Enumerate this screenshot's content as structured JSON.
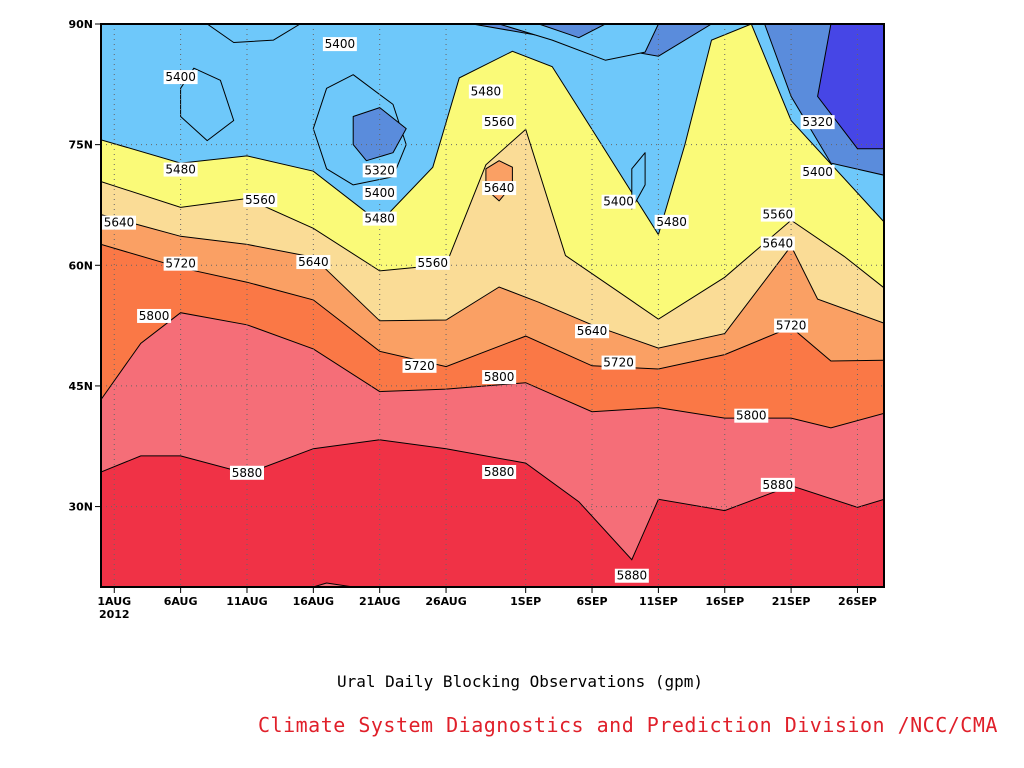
{
  "chart_data": {
    "type": "heatmap",
    "title": "Ural Daily Blocking Observations (gpm)",
    "credit": "Climate System Diagnostics and Prediction Division /NCC/CMA",
    "xlabel": "",
    "ylabel": "",
    "x_range": [
      "2012-07-31",
      "2012-09-28"
    ],
    "y_range": [
      20,
      90
    ],
    "x_ticks": [
      {
        "date": "2012-08-01",
        "label": "1AUG",
        "sublabel": "2012"
      },
      {
        "date": "2012-08-06",
        "label": "6AUG"
      },
      {
        "date": "2012-08-11",
        "label": "11AUG"
      },
      {
        "date": "2012-08-16",
        "label": "16AUG"
      },
      {
        "date": "2012-08-21",
        "label": "21AUG"
      },
      {
        "date": "2012-08-26",
        "label": "26AUG"
      },
      {
        "date": "2012-09-01",
        "label": "1SEP"
      },
      {
        "date": "2012-09-06",
        "label": "6SEP"
      },
      {
        "date": "2012-09-11",
        "label": "11SEP"
      },
      {
        "date": "2012-09-16",
        "label": "16SEP"
      },
      {
        "date": "2012-09-21",
        "label": "21SEP"
      },
      {
        "date": "2012-09-26",
        "label": "26SEP"
      }
    ],
    "y_ticks": [
      {
        "value": 30,
        "label": "30N"
      },
      {
        "value": 45,
        "label": "45N"
      },
      {
        "value": 60,
        "label": "60N"
      },
      {
        "value": 75,
        "label": "75N"
      },
      {
        "value": 90,
        "label": "90N"
      }
    ],
    "grid": true,
    "contour_levels": [
      5320,
      5400,
      5480,
      5560,
      5640,
      5720,
      5800,
      5880
    ],
    "fill_colors": [
      "#4646e6",
      "#5a8cdc",
      "#6ec8fa",
      "#fafa78",
      "#fadc96",
      "#faa064",
      "#fa7846",
      "#f56e78",
      "#f03246"
    ],
    "boundaries": [
      {
        "level": 5880,
        "points": [
          [
            "2012-07-31",
            34.3
          ],
          [
            "2012-08-03",
            36.3
          ],
          [
            "2012-08-06",
            36.3
          ],
          [
            "2012-08-11",
            34.1
          ],
          [
            "2012-08-16",
            37.2
          ],
          [
            "2012-08-21",
            38.3
          ],
          [
            "2012-08-26",
            37.2
          ],
          [
            "2012-09-01",
            35.4
          ],
          [
            "2012-09-05",
            30.6
          ],
          [
            "2012-09-09",
            23.4
          ],
          [
            "2012-09-11",
            30.9
          ],
          [
            "2012-09-16",
            29.5
          ],
          [
            "2012-09-21",
            32.6
          ],
          [
            "2012-09-26",
            29.9
          ],
          [
            "2012-09-28",
            30.9
          ]
        ]
      },
      {
        "level": 5800,
        "points": [
          [
            "2012-07-31",
            43.3
          ],
          [
            "2012-08-03",
            50.3
          ],
          [
            "2012-08-06",
            54.1
          ],
          [
            "2012-08-11",
            52.6
          ],
          [
            "2012-08-16",
            49.6
          ],
          [
            "2012-08-21",
            44.3
          ],
          [
            "2012-08-26",
            44.6
          ],
          [
            "2012-09-01",
            45.4
          ],
          [
            "2012-09-06",
            41.8
          ],
          [
            "2012-09-11",
            42.3
          ],
          [
            "2012-09-16",
            41.0
          ],
          [
            "2012-09-21",
            41.0
          ],
          [
            "2012-09-24",
            39.8
          ],
          [
            "2012-09-28",
            41.6
          ]
        ]
      },
      {
        "level": 5720,
        "points": [
          [
            "2012-07-31",
            62.6
          ],
          [
            "2012-08-06",
            59.7
          ],
          [
            "2012-08-11",
            57.9
          ],
          [
            "2012-08-16",
            55.7
          ],
          [
            "2012-08-21",
            49.3
          ],
          [
            "2012-08-26",
            47.4
          ],
          [
            "2012-09-01",
            51.2
          ],
          [
            "2012-09-06",
            47.5
          ],
          [
            "2012-09-11",
            47.1
          ],
          [
            "2012-09-16",
            48.9
          ],
          [
            "2012-09-21",
            52.3
          ],
          [
            "2012-09-24",
            48.1
          ],
          [
            "2012-09-28",
            48.2
          ]
        ]
      },
      {
        "level": 5640,
        "points": [
          [
            "2012-07-31",
            66.3
          ],
          [
            "2012-08-06",
            63.6
          ],
          [
            "2012-08-11",
            62.6
          ],
          [
            "2012-08-16",
            61.0
          ],
          [
            "2012-08-21",
            53.1
          ],
          [
            "2012-08-26",
            53.2
          ],
          [
            "2012-08-30",
            57.3
          ],
          [
            "2012-09-02",
            55.4
          ],
          [
            "2012-09-06",
            52.6
          ],
          [
            "2012-09-11",
            49.7
          ],
          [
            "2012-09-16",
            51.5
          ],
          [
            "2012-09-21",
            62.4
          ],
          [
            "2012-09-23",
            55.8
          ],
          [
            "2012-09-28",
            52.8
          ]
        ]
      },
      {
        "level": 5560,
        "points": [
          [
            "2012-07-31",
            70.4
          ],
          [
            "2012-08-06",
            67.2
          ],
          [
            "2012-08-11",
            68.3
          ],
          [
            "2012-08-16",
            64.6
          ],
          [
            "2012-08-21",
            59.3
          ],
          [
            "2012-08-26",
            60.1
          ],
          [
            "2012-08-29",
            72.5
          ],
          [
            "2012-09-01",
            76.9
          ],
          [
            "2012-09-04",
            61.2
          ],
          [
            "2012-09-08",
            56.7
          ],
          [
            "2012-09-11",
            53.3
          ],
          [
            "2012-09-16",
            58.5
          ],
          [
            "2012-09-21",
            65.6
          ],
          [
            "2012-09-25",
            61.1
          ],
          [
            "2012-09-28",
            57.2
          ]
        ]
      },
      {
        "level": 5480,
        "points": [
          [
            "2012-07-31",
            75.6
          ],
          [
            "2012-08-06",
            72.7
          ],
          [
            "2012-08-11",
            73.6
          ],
          [
            "2012-08-16",
            71.7
          ],
          [
            "2012-08-21",
            65.3
          ],
          [
            "2012-08-25",
            72.2
          ],
          [
            "2012-08-27",
            83.3
          ],
          [
            "2012-08-31",
            86.6
          ],
          [
            "2012-09-03",
            84.7
          ],
          [
            "2012-09-06",
            76.9
          ],
          [
            "2012-09-11",
            63.8
          ],
          [
            "2012-09-13",
            75.0
          ],
          [
            "2012-09-15",
            88.0
          ],
          [
            "2012-09-18",
            90.0
          ],
          [
            "2012-09-21",
            78.0
          ],
          [
            "2012-09-28",
            65.4
          ]
        ]
      },
      {
        "level": 5400,
        "points": [
          [
            "2012-07-31",
            90.0
          ],
          [
            "2012-08-28",
            90.0
          ],
          [
            "2012-09-04",
            88.0
          ],
          [
            "2012-09-11",
            86.0
          ],
          [
            "2012-09-15",
            90.0
          ],
          [
            "2012-09-19",
            90.0
          ],
          [
            "2012-09-21",
            81.0
          ],
          [
            "2012-09-24",
            72.7
          ],
          [
            "2012-09-28",
            71.2
          ]
        ]
      },
      {
        "level": 5320,
        "points": [
          [
            "2012-09-24",
            90.0
          ],
          [
            "2012-09-23",
            81.0
          ],
          [
            "2012-09-26",
            74.5
          ],
          [
            "2012-09-28",
            74.5
          ]
        ]
      }
    ],
    "extra_regions": [
      {
        "level": 5640,
        "kind": "raised",
        "points": [
          [
            "2012-08-30",
            73.0
          ],
          [
            "2012-08-31",
            72.2
          ],
          [
            "2012-08-31",
            70.0
          ],
          [
            "2012-08-30",
            68.0
          ],
          [
            "2012-08-29",
            69.5
          ],
          [
            "2012-08-29",
            72.0
          ]
        ]
      },
      {
        "level": 5480,
        "kind": "lowered",
        "points": [
          [
            "2012-08-17",
            82.0
          ],
          [
            "2012-08-19",
            83.7
          ],
          [
            "2012-08-22",
            80.0
          ],
          [
            "2012-08-23",
            75.0
          ],
          [
            "2012-08-22",
            71.0
          ],
          [
            "2012-08-19",
            70.0
          ],
          [
            "2012-08-17",
            72.0
          ],
          [
            "2012-08-16",
            77.0
          ]
        ]
      },
      {
        "level": 5400,
        "kind": "lowered",
        "points": [
          [
            "2012-08-19",
            78.5
          ],
          [
            "2012-08-21",
            79.6
          ],
          [
            "2012-08-23",
            77.0
          ],
          [
            "2012-08-22",
            74.0
          ],
          [
            "2012-08-20",
            73.0
          ],
          [
            "2012-08-19",
            75.0
          ]
        ]
      },
      {
        "level": 5480,
        "kind": "lowered",
        "points": [
          [
            "2012-08-07",
            84.5
          ],
          [
            "2012-08-09",
            83.0
          ],
          [
            "2012-08-10",
            78.0
          ],
          [
            "2012-08-08",
            75.5
          ],
          [
            "2012-08-06",
            78.5
          ],
          [
            "2012-08-06",
            82.0
          ]
        ]
      },
      {
        "level": 5480,
        "kind": "lowered",
        "points": [
          [
            "2012-08-08",
            90.0
          ],
          [
            "2012-08-15",
            90.0
          ],
          [
            "2012-08-13",
            88.0
          ],
          [
            "2012-08-10",
            87.7
          ]
        ]
      },
      {
        "level": 5480,
        "kind": "lowered",
        "points": [
          [
            "2012-09-09",
            72.0
          ],
          [
            "2012-09-10",
            74.0
          ],
          [
            "2012-09-10",
            70.0
          ],
          [
            "2012-09-09",
            67.0
          ],
          [
            "2012-09-09",
            69.0
          ]
        ]
      },
      {
        "level": 5480,
        "kind": "lowered",
        "points": [
          [
            "2012-08-30",
            90.0
          ],
          [
            "2012-09-11",
            90.0
          ],
          [
            "2012-09-10",
            86.5
          ],
          [
            "2012-09-07",
            85.5
          ],
          [
            "2012-09-03",
            88.0
          ]
        ]
      },
      {
        "level": 5400,
        "kind": "lowered",
        "points": [
          [
            "2012-09-02",
            90.0
          ],
          [
            "2012-09-07",
            90.0
          ],
          [
            "2012-09-05",
            88.3
          ]
        ]
      },
      {
        "level": 5880,
        "kind": "lowered",
        "points": [
          [
            "2012-08-16",
            20.0
          ],
          [
            "2012-08-17",
            20.5
          ],
          [
            "2012-08-19",
            20.0
          ]
        ]
      }
    ],
    "contour_labels": [
      {
        "text": "5880",
        "x": "2012-08-11",
        "y": 34.2
      },
      {
        "text": "5880",
        "x": "2012-08-30",
        "y": 34.3
      },
      {
        "text": "5880",
        "x": "2012-09-09",
        "y": 21.4
      },
      {
        "text": "5880",
        "x": "2012-09-20",
        "y": 32.7
      },
      {
        "text": "5800",
        "x": "2012-08-04",
        "y": 53.7
      },
      {
        "text": "5800",
        "x": "2012-08-30",
        "y": 46.1
      },
      {
        "text": "5800",
        "x": "2012-09-18",
        "y": 41.3
      },
      {
        "text": "5720",
        "x": "2012-08-06",
        "y": 60.2
      },
      {
        "text": "5720",
        "x": "2012-08-24",
        "y": 47.5
      },
      {
        "text": "5720",
        "x": "2012-09-08",
        "y": 47.9
      },
      {
        "text": "5720",
        "x": "2012-09-21",
        "y": 52.5
      },
      {
        "text": "5640",
        "x": "2012-07-31",
        "y": 65.3
      },
      {
        "text": "5640",
        "x": "2012-08-16",
        "y": 60.4
      },
      {
        "text": "5640",
        "x": "2012-08-30",
        "y": 69.6
      },
      {
        "text": "5640",
        "x": "2012-09-06",
        "y": 51.8
      },
      {
        "text": "5640",
        "x": "2012-09-20",
        "y": 62.7
      },
      {
        "text": "5560",
        "x": "2012-08-12",
        "y": 68.1
      },
      {
        "text": "5560",
        "x": "2012-08-25",
        "y": 60.3
      },
      {
        "text": "5560",
        "x": "2012-08-30",
        "y": 77.8
      },
      {
        "text": "5560",
        "x": "2012-09-20",
        "y": 66.3
      },
      {
        "text": "5480",
        "x": "2012-08-06",
        "y": 71.9
      },
      {
        "text": "5480",
        "x": "2012-08-21",
        "y": 65.8
      },
      {
        "text": "5480",
        "x": "2012-08-29",
        "y": 81.6
      },
      {
        "text": "5480",
        "x": "2012-09-12",
        "y": 65.4
      },
      {
        "text": "5400",
        "x": "2012-08-06",
        "y": 83.4
      },
      {
        "text": "5400",
        "x": "2012-08-18",
        "y": 87.5
      },
      {
        "text": "5400",
        "x": "2012-08-21",
        "y": 69.0
      },
      {
        "text": "5400",
        "x": "2012-09-08",
        "y": 67.9
      },
      {
        "text": "5400",
        "x": "2012-09-23",
        "y": 71.6
      },
      {
        "text": "5320",
        "x": "2012-08-21",
        "y": 71.8
      },
      {
        "text": "5320",
        "x": "2012-09-23",
        "y": 77.8
      }
    ]
  }
}
